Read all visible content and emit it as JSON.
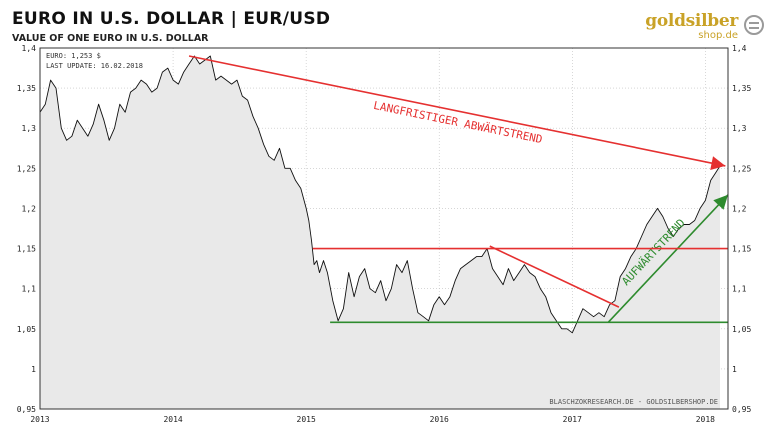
{
  "header": {
    "title": "EURO  IN  U.S. DOLLAR  |  EUR/USD",
    "subtitle": "VALUE OF ONE EURO IN U.S. DOLLAR"
  },
  "logo": {
    "main": "goldsilber",
    "sub": "shop.de",
    "icon": "coin-stack-icon"
  },
  "info": {
    "line1": "EURO: 1,253 $",
    "line2": "LAST UPDATE: 16.02.2018"
  },
  "source": "BLASCHZOKRESEARCH.DE - GOLDSILBERSHOP.DE",
  "chart_data": {
    "type": "line",
    "title": "EURO  IN  U.S. DOLLAR  |  EUR/USD",
    "subtitle": "VALUE OF ONE EURO IN U.S. DOLLAR",
    "xlabel": "",
    "ylabel": "",
    "xlim": [
      2013.0,
      2018.17
    ],
    "ylim": [
      0.95,
      1.4
    ],
    "yticks": [
      0.95,
      1,
      1.05,
      1.1,
      1.15,
      1.2,
      1.25,
      1.3,
      1.35,
      1.4
    ],
    "yticklabels": [
      "0,95",
      "1",
      "1,05",
      "1,1",
      "1,15",
      "1,2",
      "1,25",
      "1,3",
      "1,35",
      "1,4"
    ],
    "xticks": [
      2013,
      2014,
      2015,
      2016,
      2017,
      2018
    ],
    "xticklabels": [
      "2013",
      "2014",
      "2015",
      "2016",
      "2017",
      "2018"
    ],
    "grid": true,
    "series": [
      {
        "x": [
          2013.0,
          2013.04,
          2013.08,
          2013.12,
          2013.16,
          2013.2,
          2013.24,
          2013.28,
          2013.32,
          2013.36,
          2013.4,
          2013.44,
          2013.48,
          2013.52,
          2013.56,
          2013.6,
          2013.64,
          2013.68,
          2013.72,
          2013.76,
          2013.8,
          2013.84,
          2013.88,
          2013.92,
          2013.96,
          2014.0,
          2014.04,
          2014.08,
          2014.12,
          2014.16,
          2014.2,
          2014.24,
          2014.28,
          2014.32,
          2014.36,
          2014.4,
          2014.44,
          2014.48,
          2014.52,
          2014.56,
          2014.6,
          2014.64,
          2014.68,
          2014.72,
          2014.76,
          2014.8,
          2014.84,
          2014.88,
          2014.92,
          2014.96,
          2015.0,
          2015.02,
          2015.04,
          2015.06,
          2015.08,
          2015.1,
          2015.13,
          2015.16,
          2015.2,
          2015.24,
          2015.28,
          2015.32,
          2015.36,
          2015.4,
          2015.44,
          2015.48,
          2015.52,
          2015.56,
          2015.6,
          2015.64,
          2015.68,
          2015.72,
          2015.76,
          2015.8,
          2015.84,
          2015.88,
          2015.92,
          2015.96,
          2016.0,
          2016.04,
          2016.08,
          2016.12,
          2016.16,
          2016.2,
          2016.24,
          2016.28,
          2016.32,
          2016.36,
          2016.4,
          2016.44,
          2016.48,
          2016.52,
          2016.56,
          2016.6,
          2016.64,
          2016.68,
          2016.72,
          2016.76,
          2016.8,
          2016.84,
          2016.88,
          2016.92,
          2016.96,
          2017.0,
          2017.04,
          2017.08,
          2017.12,
          2017.16,
          2017.2,
          2017.24,
          2017.28,
          2017.32,
          2017.36,
          2017.4,
          2017.44,
          2017.48,
          2017.52,
          2017.56,
          2017.6,
          2017.64,
          2017.68,
          2017.72,
          2017.76,
          2017.8,
          2017.84,
          2017.88,
          2017.92,
          2017.96,
          2018.0,
          2018.04,
          2018.08,
          2018.11
        ],
        "y": [
          1.32,
          1.33,
          1.36,
          1.35,
          1.3,
          1.285,
          1.29,
          1.31,
          1.3,
          1.29,
          1.305,
          1.33,
          1.31,
          1.285,
          1.3,
          1.33,
          1.32,
          1.345,
          1.35,
          1.36,
          1.355,
          1.345,
          1.35,
          1.37,
          1.375,
          1.36,
          1.355,
          1.37,
          1.38,
          1.39,
          1.38,
          1.385,
          1.39,
          1.36,
          1.365,
          1.36,
          1.355,
          1.36,
          1.34,
          1.335,
          1.315,
          1.3,
          1.28,
          1.265,
          1.26,
          1.275,
          1.25,
          1.25,
          1.235,
          1.225,
          1.2,
          1.185,
          1.16,
          1.13,
          1.135,
          1.12,
          1.135,
          1.12,
          1.085,
          1.06,
          1.075,
          1.12,
          1.09,
          1.115,
          1.125,
          1.1,
          1.095,
          1.11,
          1.085,
          1.1,
          1.13,
          1.12,
          1.135,
          1.1,
          1.07,
          1.065,
          1.06,
          1.08,
          1.09,
          1.08,
          1.09,
          1.11,
          1.125,
          1.13,
          1.135,
          1.14,
          1.14,
          1.15,
          1.125,
          1.115,
          1.105,
          1.125,
          1.11,
          1.12,
          1.13,
          1.12,
          1.115,
          1.1,
          1.09,
          1.07,
          1.06,
          1.05,
          1.05,
          1.045,
          1.06,
          1.075,
          1.07,
          1.065,
          1.07,
          1.065,
          1.08,
          1.085,
          1.115,
          1.125,
          1.14,
          1.15,
          1.165,
          1.18,
          1.19,
          1.2,
          1.19,
          1.175,
          1.165,
          1.175,
          1.18,
          1.18,
          1.185,
          1.2,
          1.21,
          1.235,
          1.245,
          1.253
        ]
      }
    ],
    "annotations": [
      {
        "label": "LANGFRISTIGER ABWÄRTSTREND",
        "color": "#e53030",
        "kind": "arrow",
        "from": [
          2014.12,
          1.39
        ],
        "to": [
          2018.15,
          1.253
        ]
      },
      {
        "label": "AUFWÄRTSTREND",
        "color": "#2e8b2e",
        "kind": "arrow",
        "from": [
          2017.27,
          1.058
        ],
        "to": [
          2018.17,
          1.217
        ]
      },
      {
        "label": "",
        "color": "#e53030",
        "kind": "line",
        "from": [
          2015.05,
          1.15
        ],
        "to": [
          2018.17,
          1.15
        ]
      },
      {
        "label": "",
        "color": "#2e8b2e",
        "kind": "line",
        "from": [
          2015.18,
          1.058
        ],
        "to": [
          2018.17,
          1.058
        ]
      },
      {
        "label": "",
        "color": "#e53030",
        "kind": "line",
        "from": [
          2016.38,
          1.153
        ],
        "to": [
          2017.35,
          1.077
        ]
      }
    ]
  }
}
